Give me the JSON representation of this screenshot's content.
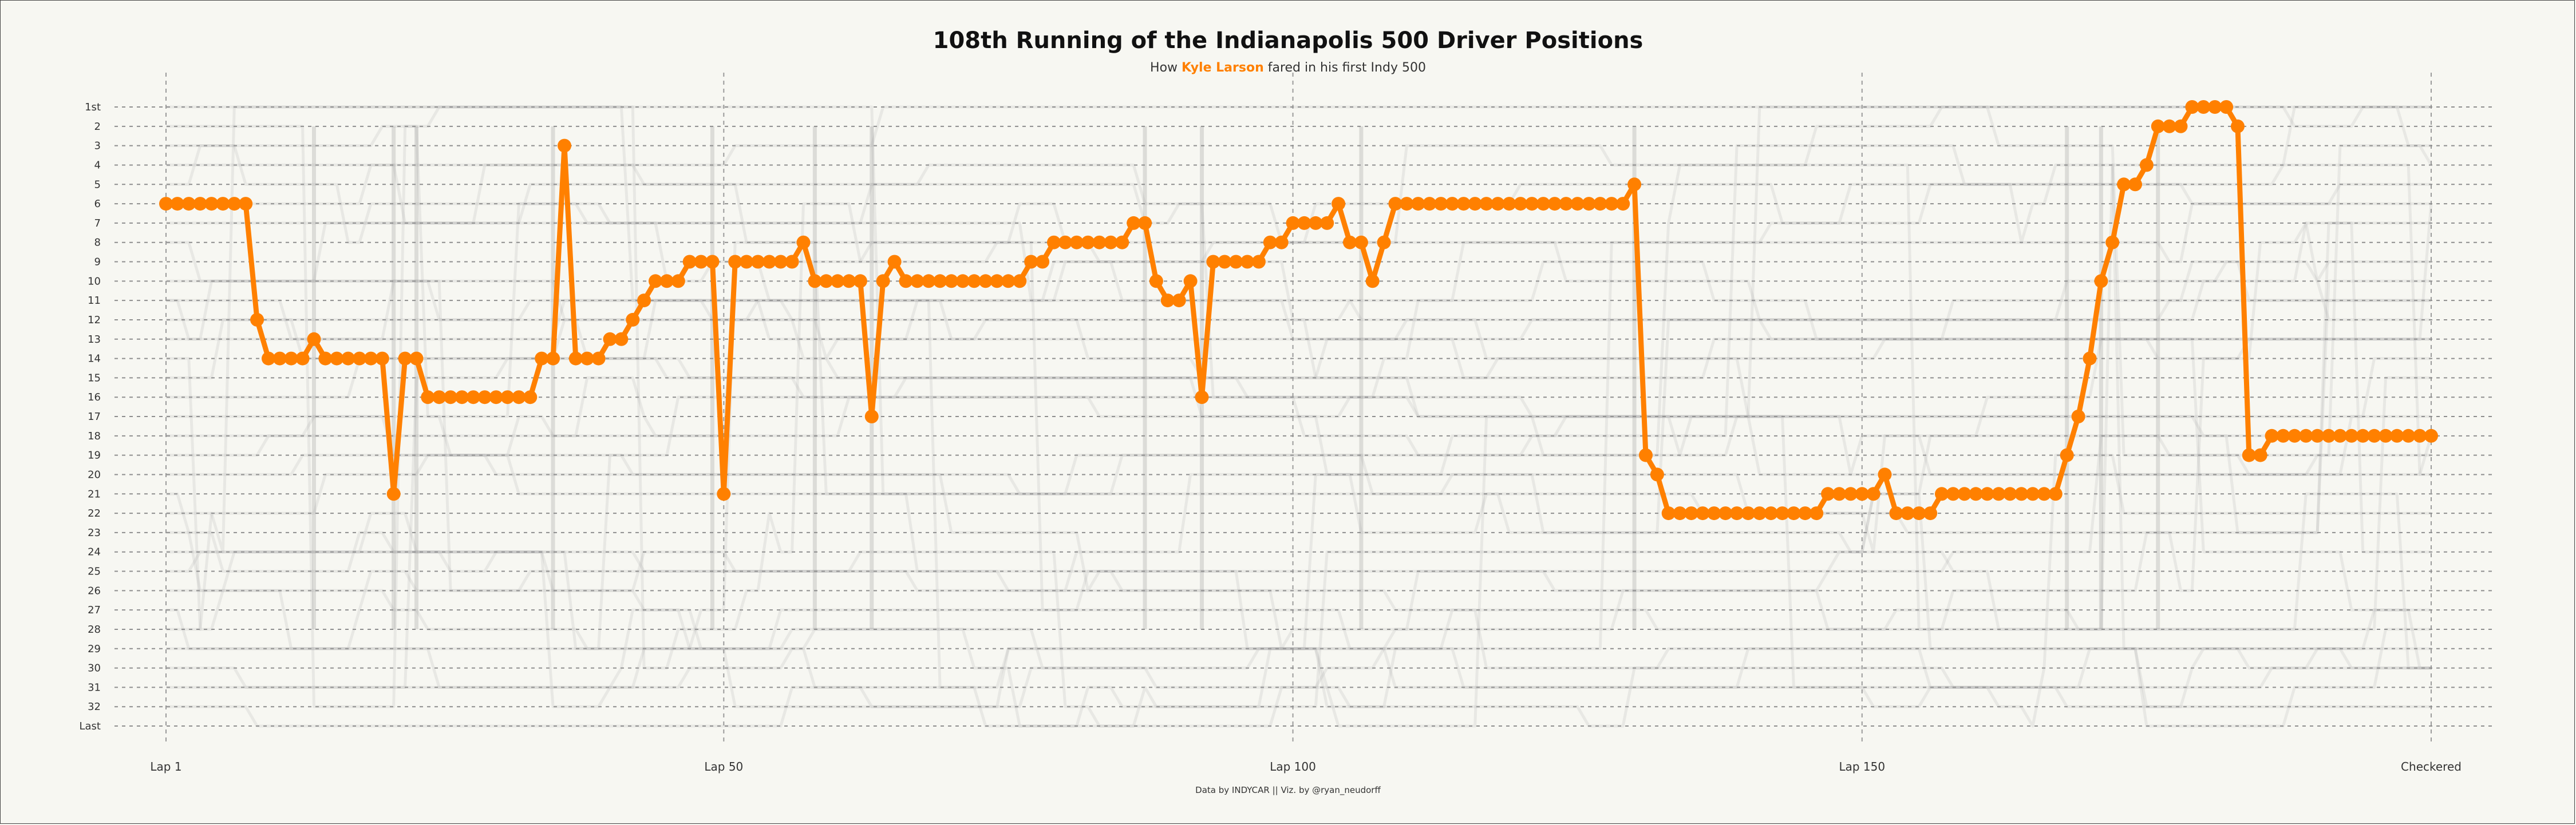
{
  "chart_data": {
    "type": "line",
    "title": "108th Running of the Indianapolis 500 Driver Positions",
    "subtitle": {
      "prefix": "How ",
      "highlight": "Kyle Larson",
      "suffix": " fared in his first Indy 500"
    },
    "caption": "Data by INDYCAR || Viz. by @ryan_neudorff",
    "x_ticks": [
      {
        "value": 1,
        "label": "Lap 1"
      },
      {
        "value": 50,
        "label": "Lap 50"
      },
      {
        "value": 100,
        "label": "Lap 100"
      },
      {
        "value": 150,
        "label": "Lap 150"
      },
      {
        "value": 200,
        "label": "Checkered"
      }
    ],
    "y_ticks": [
      "1st",
      "2",
      "3",
      "4",
      "5",
      "6",
      "7",
      "8",
      "9",
      "10",
      "11",
      "12",
      "13",
      "14",
      "15",
      "16",
      "17",
      "18",
      "19",
      "20",
      "21",
      "22",
      "23",
      "24",
      "25",
      "26",
      "27",
      "28",
      "29",
      "30",
      "31",
      "32",
      "Last"
    ],
    "xlim": [
      1,
      200
    ],
    "ylim": [
      1,
      33
    ],
    "grid": "dashed, at labeled ticks",
    "highlight_series": {
      "name": "Kyle Larson",
      "color": "#ff8000",
      "runs": [
        [
          1,
          8,
          6
        ],
        [
          9,
          9,
          12
        ],
        [
          10,
          13,
          14
        ],
        [
          14,
          14,
          13
        ],
        [
          15,
          20,
          14
        ],
        [
          21,
          21,
          21
        ],
        [
          22,
          23,
          14
        ],
        [
          24,
          33,
          16
        ],
        [
          34,
          35,
          14
        ],
        [
          36,
          36,
          3
        ],
        [
          37,
          39,
          14
        ],
        [
          40,
          41,
          13
        ],
        [
          42,
          42,
          12
        ],
        [
          43,
          43,
          11
        ],
        [
          44,
          46,
          10
        ],
        [
          47,
          49,
          9
        ],
        [
          50,
          50,
          21
        ],
        [
          51,
          56,
          9
        ],
        [
          57,
          57,
          8
        ],
        [
          58,
          62,
          10
        ],
        [
          63,
          63,
          17
        ],
        [
          64,
          64,
          10
        ],
        [
          65,
          65,
          9
        ],
        [
          66,
          76,
          10
        ],
        [
          77,
          78,
          9
        ],
        [
          79,
          85,
          8
        ],
        [
          86,
          87,
          7
        ],
        [
          88,
          88,
          10
        ],
        [
          89,
          90,
          11
        ],
        [
          91,
          91,
          10
        ],
        [
          92,
          92,
          16
        ],
        [
          93,
          97,
          9
        ],
        [
          98,
          99,
          8
        ],
        [
          100,
          103,
          7
        ],
        [
          104,
          104,
          6
        ],
        [
          105,
          106,
          8
        ],
        [
          107,
          107,
          10
        ],
        [
          108,
          108,
          8
        ],
        [
          109,
          129,
          6
        ],
        [
          130,
          130,
          5
        ],
        [
          131,
          131,
          19
        ],
        [
          132,
          132,
          20
        ],
        [
          133,
          146,
          22
        ],
        [
          147,
          151,
          21
        ],
        [
          152,
          152,
          20
        ],
        [
          153,
          156,
          22
        ],
        [
          157,
          167,
          21
        ],
        [
          168,
          168,
          19
        ],
        [
          169,
          169,
          17
        ],
        [
          170,
          170,
          14
        ],
        [
          171,
          171,
          10
        ],
        [
          172,
          172,
          8
        ],
        [
          173,
          174,
          5
        ],
        [
          175,
          175,
          4
        ],
        [
          176,
          178,
          2
        ],
        [
          179,
          182,
          1
        ],
        [
          183,
          183,
          2
        ],
        [
          184,
          185,
          19
        ],
        [
          186,
          200,
          18
        ]
      ]
    },
    "background_series": {
      "description_color": "#9a9a9a",
      "count": 32
    }
  }
}
